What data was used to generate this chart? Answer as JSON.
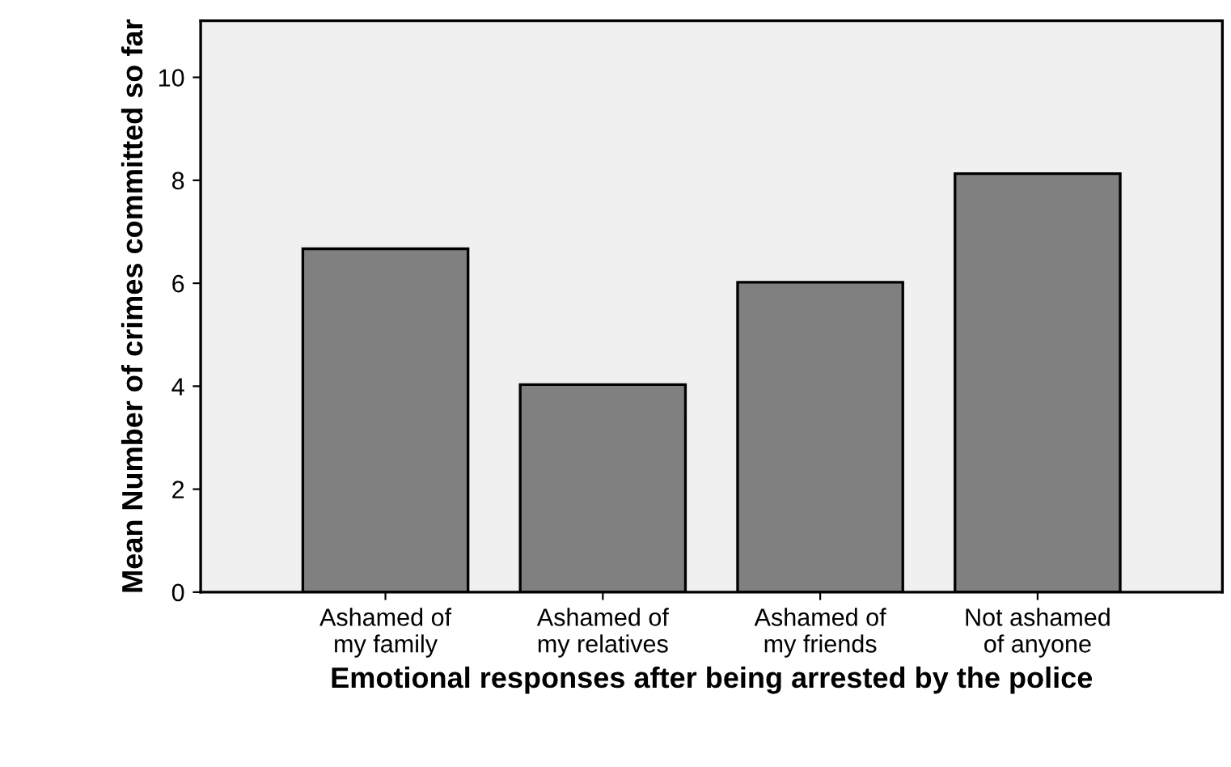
{
  "chart_data": {
    "type": "bar",
    "xlabel": "Emotional responses after being arrested by the police",
    "ylabel": "Mean Number of crimes committed so far",
    "categories": [
      "Ashamed of\nmy family",
      "Ashamed of\nmy relatives",
      "Ashamed of\nmy friends",
      "Not ashamed\nof anyone"
    ],
    "values": [
      6.67,
      4.03,
      6.02,
      8.13
    ],
    "color": "#808080",
    "ylim": [
      0,
      11.1
    ],
    "yticks": [
      0,
      2,
      4,
      6,
      8,
      10
    ],
    "grid": false
  }
}
